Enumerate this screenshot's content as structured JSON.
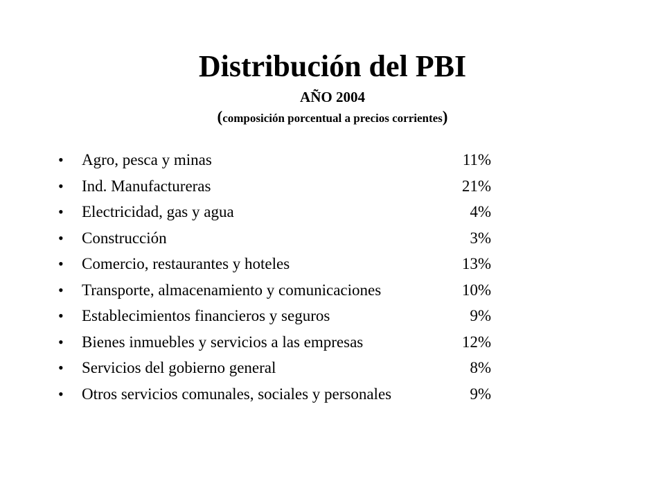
{
  "slide": {
    "title": "Distribución del PBI",
    "subtitle": "AÑO 2004",
    "note_open": "(",
    "note_text": "composición porcentual a precios corrientes",
    "note_close": ")"
  },
  "bullet_char": "•",
  "items": [
    {
      "label": "Agro, pesca y minas",
      "value": "11%"
    },
    {
      "label": "Ind. Manufactureras",
      "value": "21%"
    },
    {
      "label": "Electricidad, gas  y agua",
      "value": "4%"
    },
    {
      "label": "Construcción",
      "value": "3%"
    },
    {
      "label": "Comercio, restaurantes y hoteles",
      "value": "13%"
    },
    {
      "label": "Transporte, almacenamiento y comunicaciones",
      "value": "10%"
    },
    {
      "label": "Establecimientos financieros y seguros",
      "value": "9%"
    },
    {
      "label": "Bienes inmuebles y servicios a las empresas",
      "value": "12%"
    },
    {
      "label": "Servicios del gobierno general",
      "value": "8%"
    },
    {
      "label": "Otros servicios comunales, sociales y personales",
      "value": "9%"
    }
  ]
}
